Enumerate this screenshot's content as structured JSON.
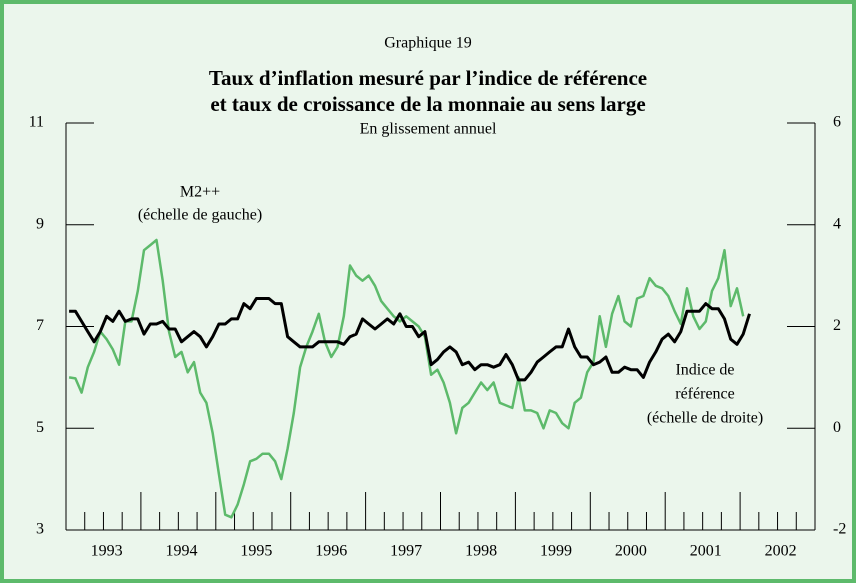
{
  "chart_data": {
    "type": "line",
    "header": "Graphique 19",
    "title": [
      "Taux d’inflation mesuré par l’indice de référence",
      "et taux de croissance de la monnaie au sens large"
    ],
    "subtitle": "En glissement annuel",
    "annotations": [
      [
        "M2++",
        "(échelle de gauche)"
      ],
      [
        "Indice de",
        "référence",
        "(échelle de droite)"
      ]
    ],
    "categories": [
      null,
      null,
      null,
      null,
      null,
      null,
      "1993",
      null,
      null,
      null,
      null,
      null,
      null,
      null,
      null,
      null,
      null,
      null,
      "1994",
      null,
      null,
      null,
      null,
      null,
      null,
      null,
      null,
      null,
      null,
      null,
      "1995",
      null,
      null,
      null,
      null,
      null,
      null,
      null,
      null,
      null,
      null,
      null,
      "1996",
      null,
      null,
      null,
      null,
      null,
      null,
      null,
      null,
      null,
      null,
      null,
      "1997",
      null,
      null,
      null,
      null,
      null,
      null,
      null,
      null,
      null,
      null,
      null,
      "1998",
      null,
      null,
      null,
      null,
      null,
      null,
      null,
      null,
      null,
      null,
      null,
      "1999",
      null,
      null,
      null,
      null,
      null,
      null,
      null,
      null,
      null,
      null,
      null,
      "2000",
      null,
      null,
      null,
      null,
      null,
      null,
      null,
      null,
      null,
      null,
      null,
      "2001",
      null,
      null,
      null,
      null,
      null,
      null,
      null,
      null,
      null,
      null,
      null,
      "2002",
      null,
      null,
      null,
      null,
      null
    ],
    "ylim": [
      3,
      11
    ],
    "yticks": [
      3,
      5,
      7,
      9,
      11
    ],
    "y2lim": [
      -2,
      6
    ],
    "y2ticks": [
      -2,
      0,
      2,
      4,
      6
    ],
    "series": [
      {
        "name": "M2++",
        "color": "#5dba6b",
        "values": [
          6.0,
          5.98,
          5.7,
          6.2,
          6.5,
          6.9,
          6.75,
          6.55,
          6.25,
          7.1,
          7.1,
          7.7,
          8.5,
          8.6,
          8.7,
          7.9,
          6.9,
          6.4,
          6.5,
          6.1,
          6.3,
          5.7,
          5.5,
          4.9,
          4.1,
          3.3,
          3.25,
          3.5,
          3.9,
          4.35,
          4.4,
          4.5,
          4.5,
          4.35,
          4.0,
          4.6,
          5.3,
          6.2,
          6.6,
          6.9,
          7.25,
          6.7,
          6.4,
          6.6,
          7.2,
          8.2,
          8.0,
          7.9,
          8.0,
          7.8,
          7.5,
          7.35,
          7.2,
          7.1,
          7.2,
          7.1,
          7.0,
          6.8,
          6.05,
          6.15,
          5.9,
          5.5,
          4.9,
          5.4,
          5.5,
          5.7,
          5.9,
          5.75,
          5.9,
          5.5,
          5.45,
          5.4,
          6.0,
          5.35,
          5.35,
          5.3,
          5.0,
          5.35,
          5.3,
          5.1,
          5.0,
          5.5,
          5.6,
          6.1,
          6.3,
          7.2,
          6.6,
          7.25,
          7.6,
          7.1,
          7.0,
          7.55,
          7.6,
          7.95,
          7.8,
          7.75,
          7.6,
          7.3,
          7.05,
          7.75,
          7.2,
          6.95,
          7.1,
          7.7,
          7.95,
          8.5,
          7.4,
          7.75,
          7.2,
          null,
          null,
          null,
          null,
          null,
          null,
          null,
          null,
          null,
          null,
          null
        ]
      },
      {
        "name": "Indice de référence",
        "color": "#000000",
        "axis": "y2",
        "values": [
          2.3,
          2.3,
          2.1,
          1.9,
          1.7,
          1.9,
          2.2,
          2.1,
          2.3,
          2.1,
          2.15,
          2.15,
          1.85,
          2.05,
          2.05,
          2.1,
          1.95,
          1.95,
          1.7,
          1.8,
          1.9,
          1.8,
          1.6,
          1.8,
          2.05,
          2.05,
          2.15,
          2.15,
          2.45,
          2.35,
          2.55,
          2.55,
          2.55,
          2.45,
          2.45,
          1.8,
          1.7,
          1.6,
          1.6,
          1.6,
          1.7,
          1.7,
          1.7,
          1.7,
          1.65,
          1.8,
          1.85,
          2.15,
          2.05,
          1.95,
          2.05,
          2.15,
          2.05,
          2.25,
          2.0,
          2.0,
          1.8,
          1.9,
          1.25,
          1.35,
          1.5,
          1.6,
          1.5,
          1.25,
          1.3,
          1.15,
          1.25,
          1.25,
          1.2,
          1.25,
          1.45,
          1.25,
          0.95,
          0.95,
          1.1,
          1.3,
          1.4,
          1.5,
          1.6,
          1.6,
          1.95,
          1.6,
          1.4,
          1.4,
          1.25,
          1.3,
          1.4,
          1.1,
          1.1,
          1.2,
          1.15,
          1.15,
          1.0,
          1.3,
          1.5,
          1.75,
          1.85,
          1.7,
          1.9,
          2.3,
          2.3,
          2.3,
          2.45,
          2.35,
          2.35,
          2.15,
          1.75,
          1.65,
          1.85,
          2.25,
          null,
          null,
          null,
          null,
          null,
          null,
          null,
          null,
          null,
          null
        ]
      }
    ]
  }
}
